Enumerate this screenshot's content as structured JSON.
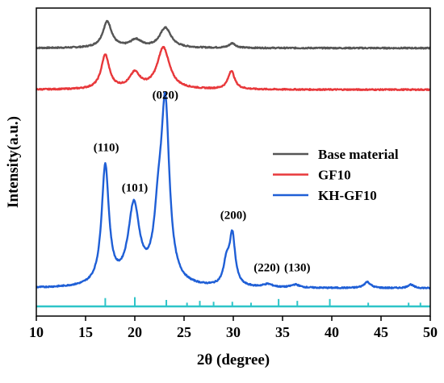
{
  "chart_data": {
    "type": "line",
    "xlabel": "2θ (degree)",
    "ylabel": "Intensity(a.u.)",
    "xlim": [
      10,
      50
    ],
    "x_ticks": [
      10,
      15,
      20,
      25,
      30,
      35,
      40,
      45,
      50
    ],
    "x_tick_labels": [
      "10",
      "15",
      "20",
      "25",
      "30",
      "35",
      "40",
      "45",
      "50"
    ],
    "y_tick_labels": "none",
    "grid": false,
    "legend_position": "right",
    "series": [
      {
        "name": "Base material",
        "color": "#555555",
        "offset": 0.87,
        "baseline": 0.0,
        "peaks": [
          {
            "x": 17.2,
            "height": 0.085,
            "width": 0.55
          },
          {
            "x": 20.1,
            "height": 0.025,
            "width": 0.7
          },
          {
            "x": 23.1,
            "height": 0.065,
            "width": 0.7
          },
          {
            "x": 29.9,
            "height": 0.015,
            "width": 0.4
          }
        ]
      },
      {
        "name": "GF10",
        "color": "#e8383b",
        "offset": 0.735,
        "baseline": 0.0,
        "peaks": [
          {
            "x": 17.0,
            "height": 0.11,
            "width": 0.5
          },
          {
            "x": 20.0,
            "height": 0.05,
            "width": 0.65
          },
          {
            "x": 22.9,
            "height": 0.135,
            "width": 0.75
          },
          {
            "x": 29.8,
            "height": 0.06,
            "width": 0.4
          }
        ]
      },
      {
        "name": "KH-GF10",
        "color": "#1f5fd6",
        "offset": 0.09,
        "baseline": 0.0,
        "peaks": [
          {
            "x": 17.0,
            "height": 0.385,
            "width": 0.45
          },
          {
            "x": 19.9,
            "height": 0.255,
            "width": 0.7
          },
          {
            "x": 22.4,
            "height": 0.18,
            "width": 0.55
          },
          {
            "x": 23.1,
            "height": 0.55,
            "width": 0.5
          },
          {
            "x": 29.3,
            "height": 0.07,
            "width": 0.35
          },
          {
            "x": 29.9,
            "height": 0.165,
            "width": 0.35
          },
          {
            "x": 33.5,
            "height": 0.01,
            "width": 0.6
          },
          {
            "x": 36.3,
            "height": 0.01,
            "width": 0.5
          },
          {
            "x": 43.6,
            "height": 0.02,
            "width": 0.4
          },
          {
            "x": 48.0,
            "height": 0.012,
            "width": 0.35
          }
        ]
      }
    ],
    "reference_pattern": {
      "color": "#2ec4c8",
      "baseline": 0.0,
      "lines": [
        {
          "x": 17.0,
          "height": 0.09
        },
        {
          "x": 20.0,
          "height": 0.1
        },
        {
          "x": 23.2,
          "height": 0.07
        },
        {
          "x": 25.3,
          "height": 0.04
        },
        {
          "x": 26.6,
          "height": 0.06
        },
        {
          "x": 28.0,
          "height": 0.05
        },
        {
          "x": 29.9,
          "height": 0.05
        },
        {
          "x": 31.8,
          "height": 0.04
        },
        {
          "x": 34.6,
          "height": 0.08
        },
        {
          "x": 36.5,
          "height": 0.06
        },
        {
          "x": 39.8,
          "height": 0.08
        },
        {
          "x": 43.7,
          "height": 0.04
        },
        {
          "x": 47.8,
          "height": 0.04
        },
        {
          "x": 49.0,
          "height": 0.04
        }
      ]
    },
    "annotations": [
      {
        "text": "(110)",
        "x": 17.1,
        "y": 0.535
      },
      {
        "text": "(101)",
        "x": 20.0,
        "y": 0.405
      },
      {
        "text": "(020)",
        "x": 23.1,
        "y": 0.705
      },
      {
        "text": "(200)",
        "x": 30.0,
        "y": 0.315
      },
      {
        "text": "(220)",
        "x": 33.4,
        "y": 0.145
      },
      {
        "text": "(130)",
        "x": 36.5,
        "y": 0.145
      }
    ]
  }
}
